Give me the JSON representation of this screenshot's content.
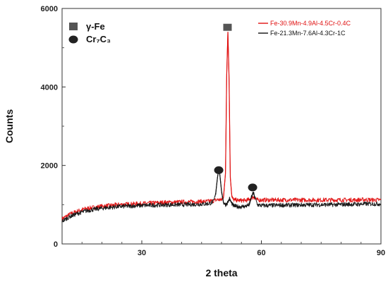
{
  "chart_data": {
    "type": "line",
    "title": "",
    "xlabel": "2 theta",
    "ylabel": "Counts",
    "xlim": [
      10,
      90
    ],
    "ylim": [
      0,
      6000
    ],
    "x_ticks": [
      30,
      60,
      90
    ],
    "y_ticks": [
      0,
      2000,
      4000,
      6000
    ],
    "x_tick_labels": [
      "30",
      "60",
      "90"
    ],
    "y_tick_labels": [
      "0",
      "2000",
      "4000",
      "6000"
    ],
    "grid": false,
    "legend_position": "top-right",
    "series": [
      {
        "name": "Fe-30.9Mn-4.9Al-4.5Cr-0.4C",
        "color": "#e01010",
        "x": [
          10,
          12,
          14,
          16,
          18,
          20,
          22,
          24,
          26,
          28,
          30,
          32,
          34,
          36,
          38,
          40,
          42,
          44,
          46,
          47,
          48,
          49,
          50,
          50.5,
          51,
          51.3,
          51.6,
          51.9,
          52.2,
          52.6,
          53,
          54,
          55,
          56,
          57,
          57.5,
          58,
          58.5,
          59,
          60,
          62,
          64,
          66,
          68,
          70,
          72,
          74,
          76,
          78,
          80,
          82,
          84,
          86,
          88,
          90
        ],
        "y": [
          640,
          760,
          840,
          900,
          930,
          960,
          980,
          1000,
          1010,
          1020,
          1030,
          1040,
          1050,
          1060,
          1060,
          1070,
          1070,
          1080,
          1080,
          1090,
          1100,
          1130,
          1120,
          1200,
          1800,
          4300,
          5400,
          4200,
          1700,
          1200,
          1130,
          1110,
          1110,
          1110,
          1130,
          1170,
          1200,
          1140,
          1120,
          1120,
          1120,
          1120,
          1120,
          1120,
          1120,
          1120,
          1120,
          1120,
          1120,
          1120,
          1120,
          1120,
          1130,
          1120,
          1120
        ]
      },
      {
        "name": "Fe-21.3Mn-7.6Al-4.3Cr-1C",
        "color": "#111111",
        "x": [
          10,
          12,
          14,
          16,
          18,
          20,
          22,
          24,
          26,
          28,
          30,
          32,
          34,
          36,
          38,
          40,
          42,
          44,
          46,
          47,
          48,
          48.5,
          49,
          49.3,
          49.6,
          50,
          50.5,
          51,
          51.5,
          52,
          52.5,
          53,
          54,
          55,
          56,
          57,
          57.5,
          58,
          58.5,
          59,
          60,
          62,
          64,
          66,
          68,
          70,
          72,
          74,
          76,
          78,
          80,
          82,
          84,
          86,
          88,
          90
        ],
        "y": [
          580,
          700,
          780,
          840,
          880,
          910,
          930,
          950,
          960,
          970,
          980,
          985,
          990,
          995,
          1000,
          1000,
          1005,
          1010,
          1020,
          1030,
          1080,
          1250,
          1700,
          1900,
          1750,
          1350,
          1050,
          1000,
          1050,
          1150,
          1050,
          970,
          950,
          950,
          960,
          1000,
          1200,
          1300,
          1150,
          1000,
          980,
          980,
          985,
          990,
          990,
          995,
          995,
          1000,
          1000,
          1000,
          1005,
          1010,
          1010,
          1020,
          1020,
          1020
        ]
      }
    ],
    "phase_markers": [
      {
        "label": "γ-Fe",
        "shape": "square",
        "color": "#555555",
        "x": 51.5,
        "y": 5520
      },
      {
        "label": "Cr₇C₃",
        "shape": "circle",
        "color": "#222222",
        "x": 49.3,
        "y": 1880
      },
      {
        "label": "Cr₇C₃",
        "shape": "circle",
        "color": "#222222",
        "x": 57.8,
        "y": 1440
      }
    ],
    "marker_legend": [
      {
        "label": "γ-Fe",
        "shape": "square",
        "color": "#555555"
      },
      {
        "label": "Cr₇C₃",
        "shape": "circle",
        "color": "#222222"
      }
    ]
  }
}
